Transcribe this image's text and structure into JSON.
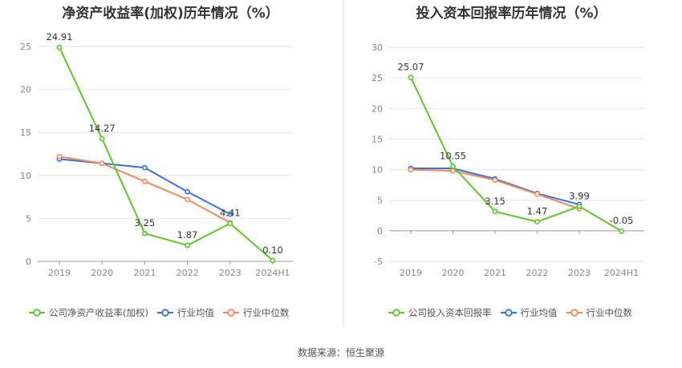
{
  "colors": {
    "company": "#5cc72c",
    "avg": "#3a72d8",
    "median": "#f08a5e",
    "grid": "#e6e6e6",
    "axis": "#999999",
    "label": "#333333"
  },
  "source": "数据来源：恒生聚源",
  "chart_data": [
    {
      "type": "line",
      "title": "净资产收益率(加权)历年情况（%）",
      "categories": [
        "2019",
        "2020",
        "2021",
        "2022",
        "2023",
        "2024H1"
      ],
      "ylim": [
        0,
        25
      ],
      "yticks": [
        "0",
        "5",
        "10",
        "15",
        "20",
        "25"
      ],
      "grid": true,
      "legend_position": "bottom-left",
      "series": [
        {
          "name": "公司净资产收益率(加权)",
          "color_key": "company",
          "values": [
            24.91,
            14.27,
            3.25,
            1.87,
            4.41,
            0.1
          ],
          "labels": [
            "24.91",
            "14.27",
            "3.25",
            "1.87",
            "4.41",
            "0.10"
          ]
        },
        {
          "name": "行业均值",
          "color_key": "avg",
          "values": [
            11.9,
            11.4,
            10.9,
            8.1,
            5.5,
            null
          ]
        },
        {
          "name": "行业中位数",
          "color_key": "median",
          "values": [
            12.2,
            11.4,
            9.3,
            7.2,
            4.5,
            null
          ]
        }
      ]
    },
    {
      "type": "line",
      "title": "投入资本回报率历年情况（%）",
      "categories": [
        "2019",
        "2020",
        "2021",
        "2022",
        "2023",
        "2024H1"
      ],
      "ylim": [
        -5,
        30
      ],
      "yticks": [
        "-5",
        "0",
        "5",
        "10",
        "15",
        "20",
        "25",
        "30"
      ],
      "grid": true,
      "legend_position": "bottom-left",
      "series": [
        {
          "name": "公司投入资本回报率",
          "color_key": "company",
          "values": [
            25.07,
            10.55,
            3.15,
            1.47,
            3.99,
            -0.05
          ],
          "labels": [
            "25.07",
            "10.55",
            "3.15",
            "1.47",
            "3.99",
            "-0.05"
          ]
        },
        {
          "name": "行业均值",
          "color_key": "avg",
          "values": [
            10.2,
            10.2,
            8.5,
            6.1,
            4.3,
            null
          ]
        },
        {
          "name": "行业中位数",
          "color_key": "median",
          "values": [
            10.0,
            9.8,
            8.3,
            6.0,
            3.6,
            null
          ]
        }
      ]
    }
  ]
}
